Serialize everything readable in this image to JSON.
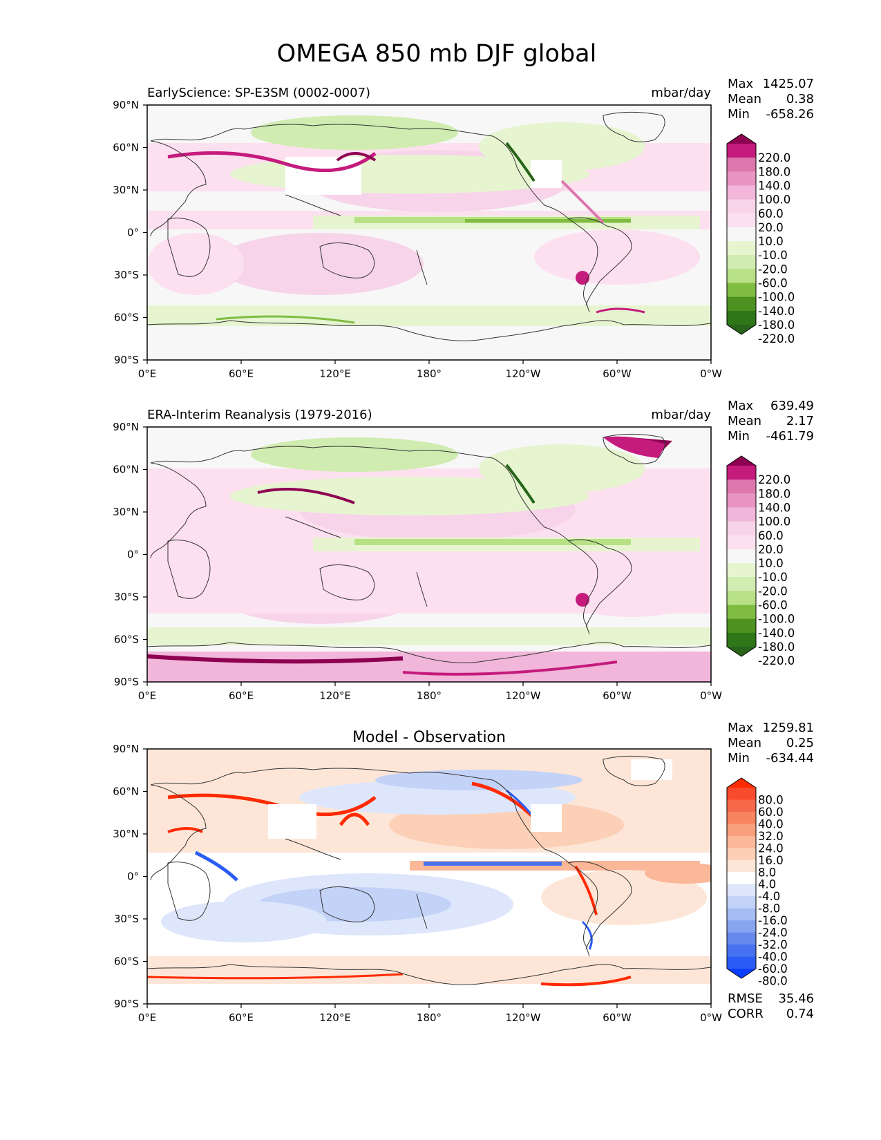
{
  "title": "OMEGA 850 mb DJF global",
  "x_ticks": [
    "0°E",
    "60°E",
    "120°E",
    "180°",
    "120°W",
    "60°W",
    "0°W"
  ],
  "y_ticks": [
    "90°N",
    "60°N",
    "30°N",
    "0°",
    "30°S",
    "60°S",
    "90°S"
  ],
  "panels": [
    {
      "left_title": "EarlyScience: SP-E3SM (0002-0007)",
      "center_title": "",
      "units": "mbar/day",
      "stats": [
        {
          "label": "Max",
          "value": "1425.07"
        },
        {
          "label": "Mean",
          "value": "0.38"
        },
        {
          "label": "Min",
          "value": "-658.26"
        }
      ],
      "colorbar": {
        "labels": [
          "220.0",
          "180.0",
          "140.0",
          "100.0",
          "60.0",
          "20.0",
          "10.0",
          "-10.0",
          "-20.0",
          "-60.0",
          "-100.0",
          "-140.0",
          "-180.0",
          "-220.0"
        ],
        "colors": [
          "#8e0152",
          "#c51b7d",
          "#de77ae",
          "#e994c2",
          "#f1b6da",
          "#f7d4e9",
          "#fde0ef",
          "#f7f7f7",
          "#e6f5d0",
          "#d0ecb0",
          "#b8e186",
          "#7fbc41",
          "#4d9221",
          "#2f7618",
          "#276419"
        ]
      },
      "footer": []
    },
    {
      "left_title": "ERA-Interim Reanalysis (1979-2016)",
      "center_title": "",
      "units": "mbar/day",
      "stats": [
        {
          "label": "Max",
          "value": "639.49"
        },
        {
          "label": "Mean",
          "value": "2.17"
        },
        {
          "label": "Min",
          "value": "-461.79"
        }
      ],
      "colorbar": {
        "labels": [
          "220.0",
          "180.0",
          "140.0",
          "100.0",
          "60.0",
          "20.0",
          "10.0",
          "-10.0",
          "-20.0",
          "-60.0",
          "-100.0",
          "-140.0",
          "-180.0",
          "-220.0"
        ],
        "colors": [
          "#8e0152",
          "#c51b7d",
          "#de77ae",
          "#e994c2",
          "#f1b6da",
          "#f7d4e9",
          "#fde0ef",
          "#f7f7f7",
          "#e6f5d0",
          "#d0ecb0",
          "#b8e186",
          "#7fbc41",
          "#4d9221",
          "#2f7618",
          "#276419"
        ]
      },
      "footer": []
    },
    {
      "left_title": "",
      "center_title": "Model - Observation",
      "units": "",
      "stats": [
        {
          "label": "Max",
          "value": "1259.81"
        },
        {
          "label": "Mean",
          "value": "0.25"
        },
        {
          "label": "Min",
          "value": "-634.44"
        }
      ],
      "colorbar": {
        "labels": [
          "80.0",
          "60.0",
          "40.0",
          "32.0",
          "24.0",
          "16.0",
          "8.0",
          "4.0",
          "-4.0",
          "-8.0",
          "-16.0",
          "-24.0",
          "-32.0",
          "-40.0",
          "-60.0",
          "-80.0"
        ],
        "colors": [
          "#ff2a00",
          "#fa4a2e",
          "#f66848",
          "#f7845f",
          "#f89e7a",
          "#fab898",
          "#fcd0b6",
          "#fde6d8",
          "#ffffff",
          "#dde6fb",
          "#c3d2f7",
          "#a6bdf4",
          "#86a4f0",
          "#6689ed",
          "#4772ef",
          "#2a5cf5",
          "#0a3dff"
        ]
      },
      "footer": [
        {
          "label": "RMSE",
          "value": "35.46"
        },
        {
          "label": "CORR",
          "value": "0.74"
        }
      ]
    }
  ]
}
